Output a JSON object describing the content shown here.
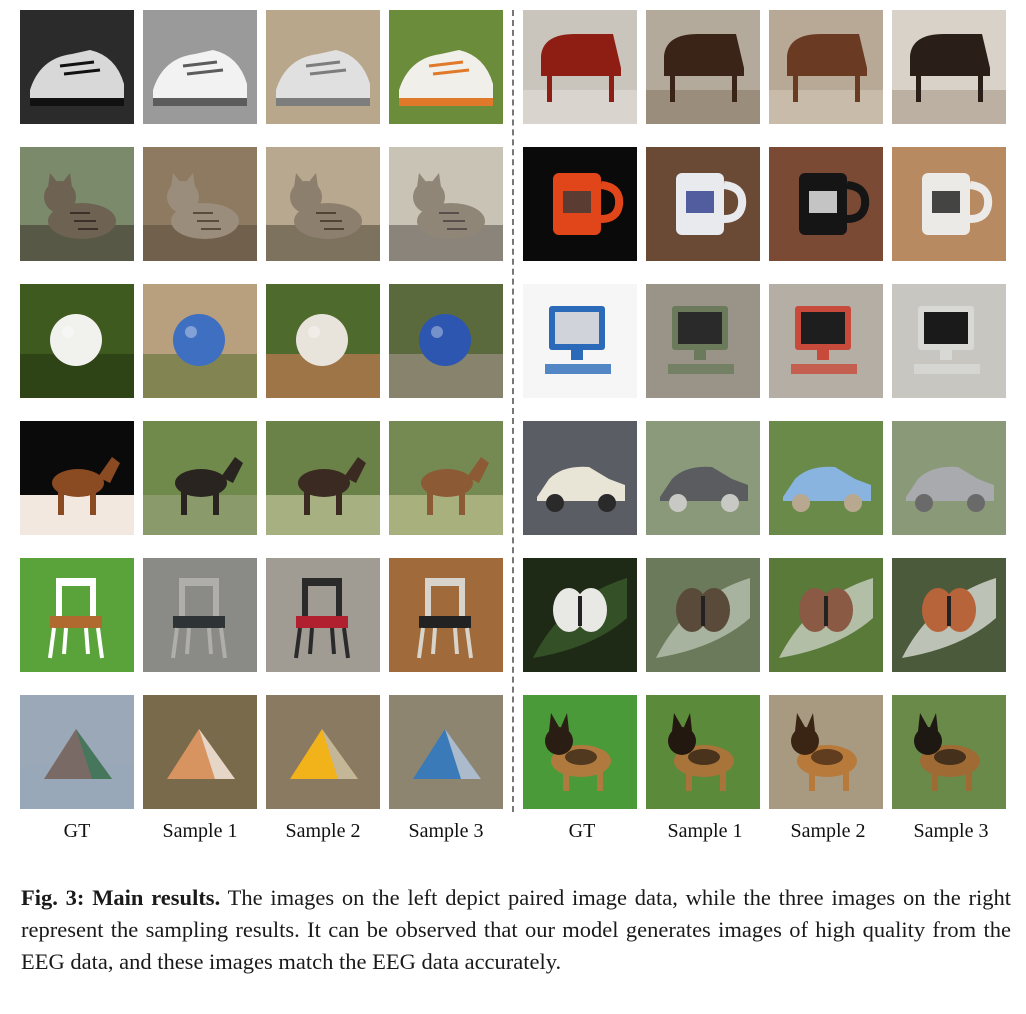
{
  "figure": {
    "left_group": {
      "column_labels": [
        "GT",
        "Sample 1",
        "Sample 2",
        "Sample 3"
      ],
      "rows": [
        {
          "subject": "sneakers",
          "tiles": [
            {
              "palette": [
                "#2b2b2b",
                "#d8d8d8",
                "#111111"
              ],
              "kind": "shoe"
            },
            {
              "palette": [
                "#9a9a9a",
                "#f2f2f2",
                "#5c5c5c"
              ],
              "kind": "shoe"
            },
            {
              "palette": [
                "#b8a78a",
                "#e0e0e0",
                "#7d7d7d"
              ],
              "kind": "shoe"
            },
            {
              "palette": [
                "#6b8c3a",
                "#f0efe9",
                "#e07a2a"
              ],
              "kind": "shoe"
            }
          ]
        },
        {
          "subject": "tabby cat",
          "tiles": [
            {
              "palette": [
                "#7a8a6a",
                "#6e6252",
                "#3a3028"
              ],
              "kind": "cat"
            },
            {
              "palette": [
                "#8e7a60",
                "#9a8d7c",
                "#5a4b3c"
              ],
              "kind": "cat"
            },
            {
              "palette": [
                "#b7a88f",
                "#8c7f6d",
                "#4f4537"
              ],
              "kind": "cat"
            },
            {
              "palette": [
                "#c9c3b5",
                "#8f8677",
                "#58504a"
              ],
              "kind": "cat"
            }
          ]
        },
        {
          "subject": "ball",
          "tiles": [
            {
              "palette": [
                "#3f5a1e",
                "#f1f1ee",
                "#2a3a12"
              ],
              "kind": "ball"
            },
            {
              "palette": [
                "#b89f7e",
                "#3f6fc0",
                "#6b7a40"
              ],
              "kind": "ball"
            },
            {
              "palette": [
                "#4e6a2c",
                "#e8e4dc",
                "#c07a52"
              ],
              "kind": "ball"
            },
            {
              "palette": [
                "#5b6a3c",
                "#2c56b0",
                "#9a8f80"
              ],
              "kind": "ball"
            }
          ]
        },
        {
          "subject": "horse",
          "tiles": [
            {
              "palette": [
                "#0a0a0a",
                "#8a4a22",
                "#f2e8e0"
              ],
              "kind": "horse"
            },
            {
              "palette": [
                "#6f8a4a",
                "#2a2420",
                "#8a9a6a"
              ],
              "kind": "horse"
            },
            {
              "palette": [
                "#6a8248",
                "#3a2a22",
                "#a7b080"
              ],
              "kind": "horse"
            },
            {
              "palette": [
                "#748a52",
                "#8c5a34",
                "#a8b07e"
              ],
              "kind": "horse"
            }
          ]
        },
        {
          "subject": "chair",
          "tiles": [
            {
              "palette": [
                "#5aa33a",
                "#b06a30",
                "#ffffff"
              ],
              "kind": "chair"
            },
            {
              "palette": [
                "#8a8a86",
                "#2e3436",
                "#b0aea8"
              ],
              "kind": "chair"
            },
            {
              "palette": [
                "#a09c94",
                "#b0202e",
                "#2a2a2a"
              ],
              "kind": "chair"
            },
            {
              "palette": [
                "#a06a3a",
                "#222222",
                "#d8d4cc"
              ],
              "kind": "chair"
            }
          ]
        },
        {
          "subject": "tent",
          "tiles": [
            {
              "palette": [
                "#9aa8b8",
                "#7a6a66",
                "#3a7a5a"
              ],
              "kind": "tent"
            },
            {
              "palette": [
                "#7a6a4c",
                "#d89460",
                "#e8e6e2"
              ],
              "kind": "tent"
            },
            {
              "palette": [
                "#8a7a62",
                "#f2b21a",
                "#b8b8b8"
              ],
              "kind": "tent"
            },
            {
              "palette": [
                "#8e8570",
                "#3a7ab8",
                "#c8ccd0"
              ],
              "kind": "tent"
            }
          ]
        }
      ]
    },
    "right_group": {
      "column_labels": [
        "GT",
        "Sample 1",
        "Sample 2",
        "Sample 3"
      ],
      "rows": [
        {
          "subject": "piano",
          "tiles": [
            {
              "palette": [
                "#c9c4bc",
                "#8e1e14",
                "#e4e0d8"
              ],
              "kind": "piano"
            },
            {
              "palette": [
                "#b4aa9c",
                "#3a2418",
                "#8a7a68"
              ],
              "kind": "piano"
            },
            {
              "palette": [
                "#b8a896",
                "#6a3a22",
                "#d4c8b8"
              ],
              "kind": "piano"
            },
            {
              "palette": [
                "#d8d2c8",
                "#2a1e18",
                "#a89a88"
              ],
              "kind": "piano"
            }
          ]
        },
        {
          "subject": "mug",
          "tiles": [
            {
              "palette": [
                "#0a0a0a",
                "#e0461a",
                "#3a3a3a"
              ],
              "kind": "mug"
            },
            {
              "palette": [
                "#6a4a34",
                "#e8eaee",
                "#2a3a8a"
              ],
              "kind": "mug"
            },
            {
              "palette": [
                "#7a4a34",
                "#151515",
                "#f0f0f0"
              ],
              "kind": "mug"
            },
            {
              "palette": [
                "#b88a62",
                "#eceae6",
                "#1a1a1a"
              ],
              "kind": "mug"
            }
          ]
        },
        {
          "subject": "computer",
          "tiles": [
            {
              "palette": [
                "#f6f6f6",
                "#d0d4da",
                "#2a6ab8"
              ],
              "kind": "computer"
            },
            {
              "palette": [
                "#9a9488",
                "#2a2a2a",
                "#6a7a5a"
              ],
              "kind": "computer"
            },
            {
              "palette": [
                "#b4aea4",
                "#1e1e1e",
                "#c84a3a"
              ],
              "kind": "computer"
            },
            {
              "palette": [
                "#c8c6c0",
                "#1a1a1a",
                "#d8d8d4"
              ],
              "kind": "computer"
            }
          ]
        },
        {
          "subject": "car",
          "tiles": [
            {
              "palette": [
                "#5a5e64",
                "#e8e4d6",
                "#2a2a2a"
              ],
              "kind": "car"
            },
            {
              "palette": [
                "#8a9a7a",
                "#5a5c60",
                "#c8c8c4"
              ],
              "kind": "car"
            },
            {
              "palette": [
                "#6a8a4a",
                "#8ab4e0",
                "#b8a890"
              ],
              "kind": "car"
            },
            {
              "palette": [
                "#8a9a78",
                "#a8aaae",
                "#6a6a6a"
              ],
              "kind": "car"
            }
          ]
        },
        {
          "subject": "butterfly",
          "tiles": [
            {
              "palette": [
                "#1e2a16",
                "#e8e8e4",
                "#3a5a2a"
              ],
              "kind": "butterfly"
            },
            {
              "palette": [
                "#6a7a5a",
                "#5a4a3a",
                "#b8c2b0"
              ],
              "kind": "butterfly"
            },
            {
              "palette": [
                "#5a7a3a",
                "#8a5a44",
                "#c8d0c0"
              ],
              "kind": "butterfly"
            },
            {
              "palette": [
                "#4a5a3a",
                "#b8643a",
                "#d8dcd4"
              ],
              "kind": "butterfly"
            }
          ]
        },
        {
          "subject": "german shepherd",
          "tiles": [
            {
              "palette": [
                "#4a9a3a",
                "#2a1e14",
                "#b07a3e"
              ],
              "kind": "dog"
            },
            {
              "palette": [
                "#5a8a3a",
                "#22180f",
                "#a8743a"
              ],
              "kind": "dog"
            },
            {
              "palette": [
                "#a89a80",
                "#3a2414",
                "#b87a3a"
              ],
              "kind": "dog"
            },
            {
              "palette": [
                "#6a8a4a",
                "#1e1812",
                "#a06a34"
              ],
              "kind": "dog"
            }
          ]
        }
      ]
    }
  },
  "caption": {
    "lead": "Fig. 3: Main results.",
    "body": "The images on the left depict paired image data, while the three images on the right represent the sampling results. It can be observed that our model generates images of high quality from the EEG data, and these images match the EEG data accurately."
  }
}
